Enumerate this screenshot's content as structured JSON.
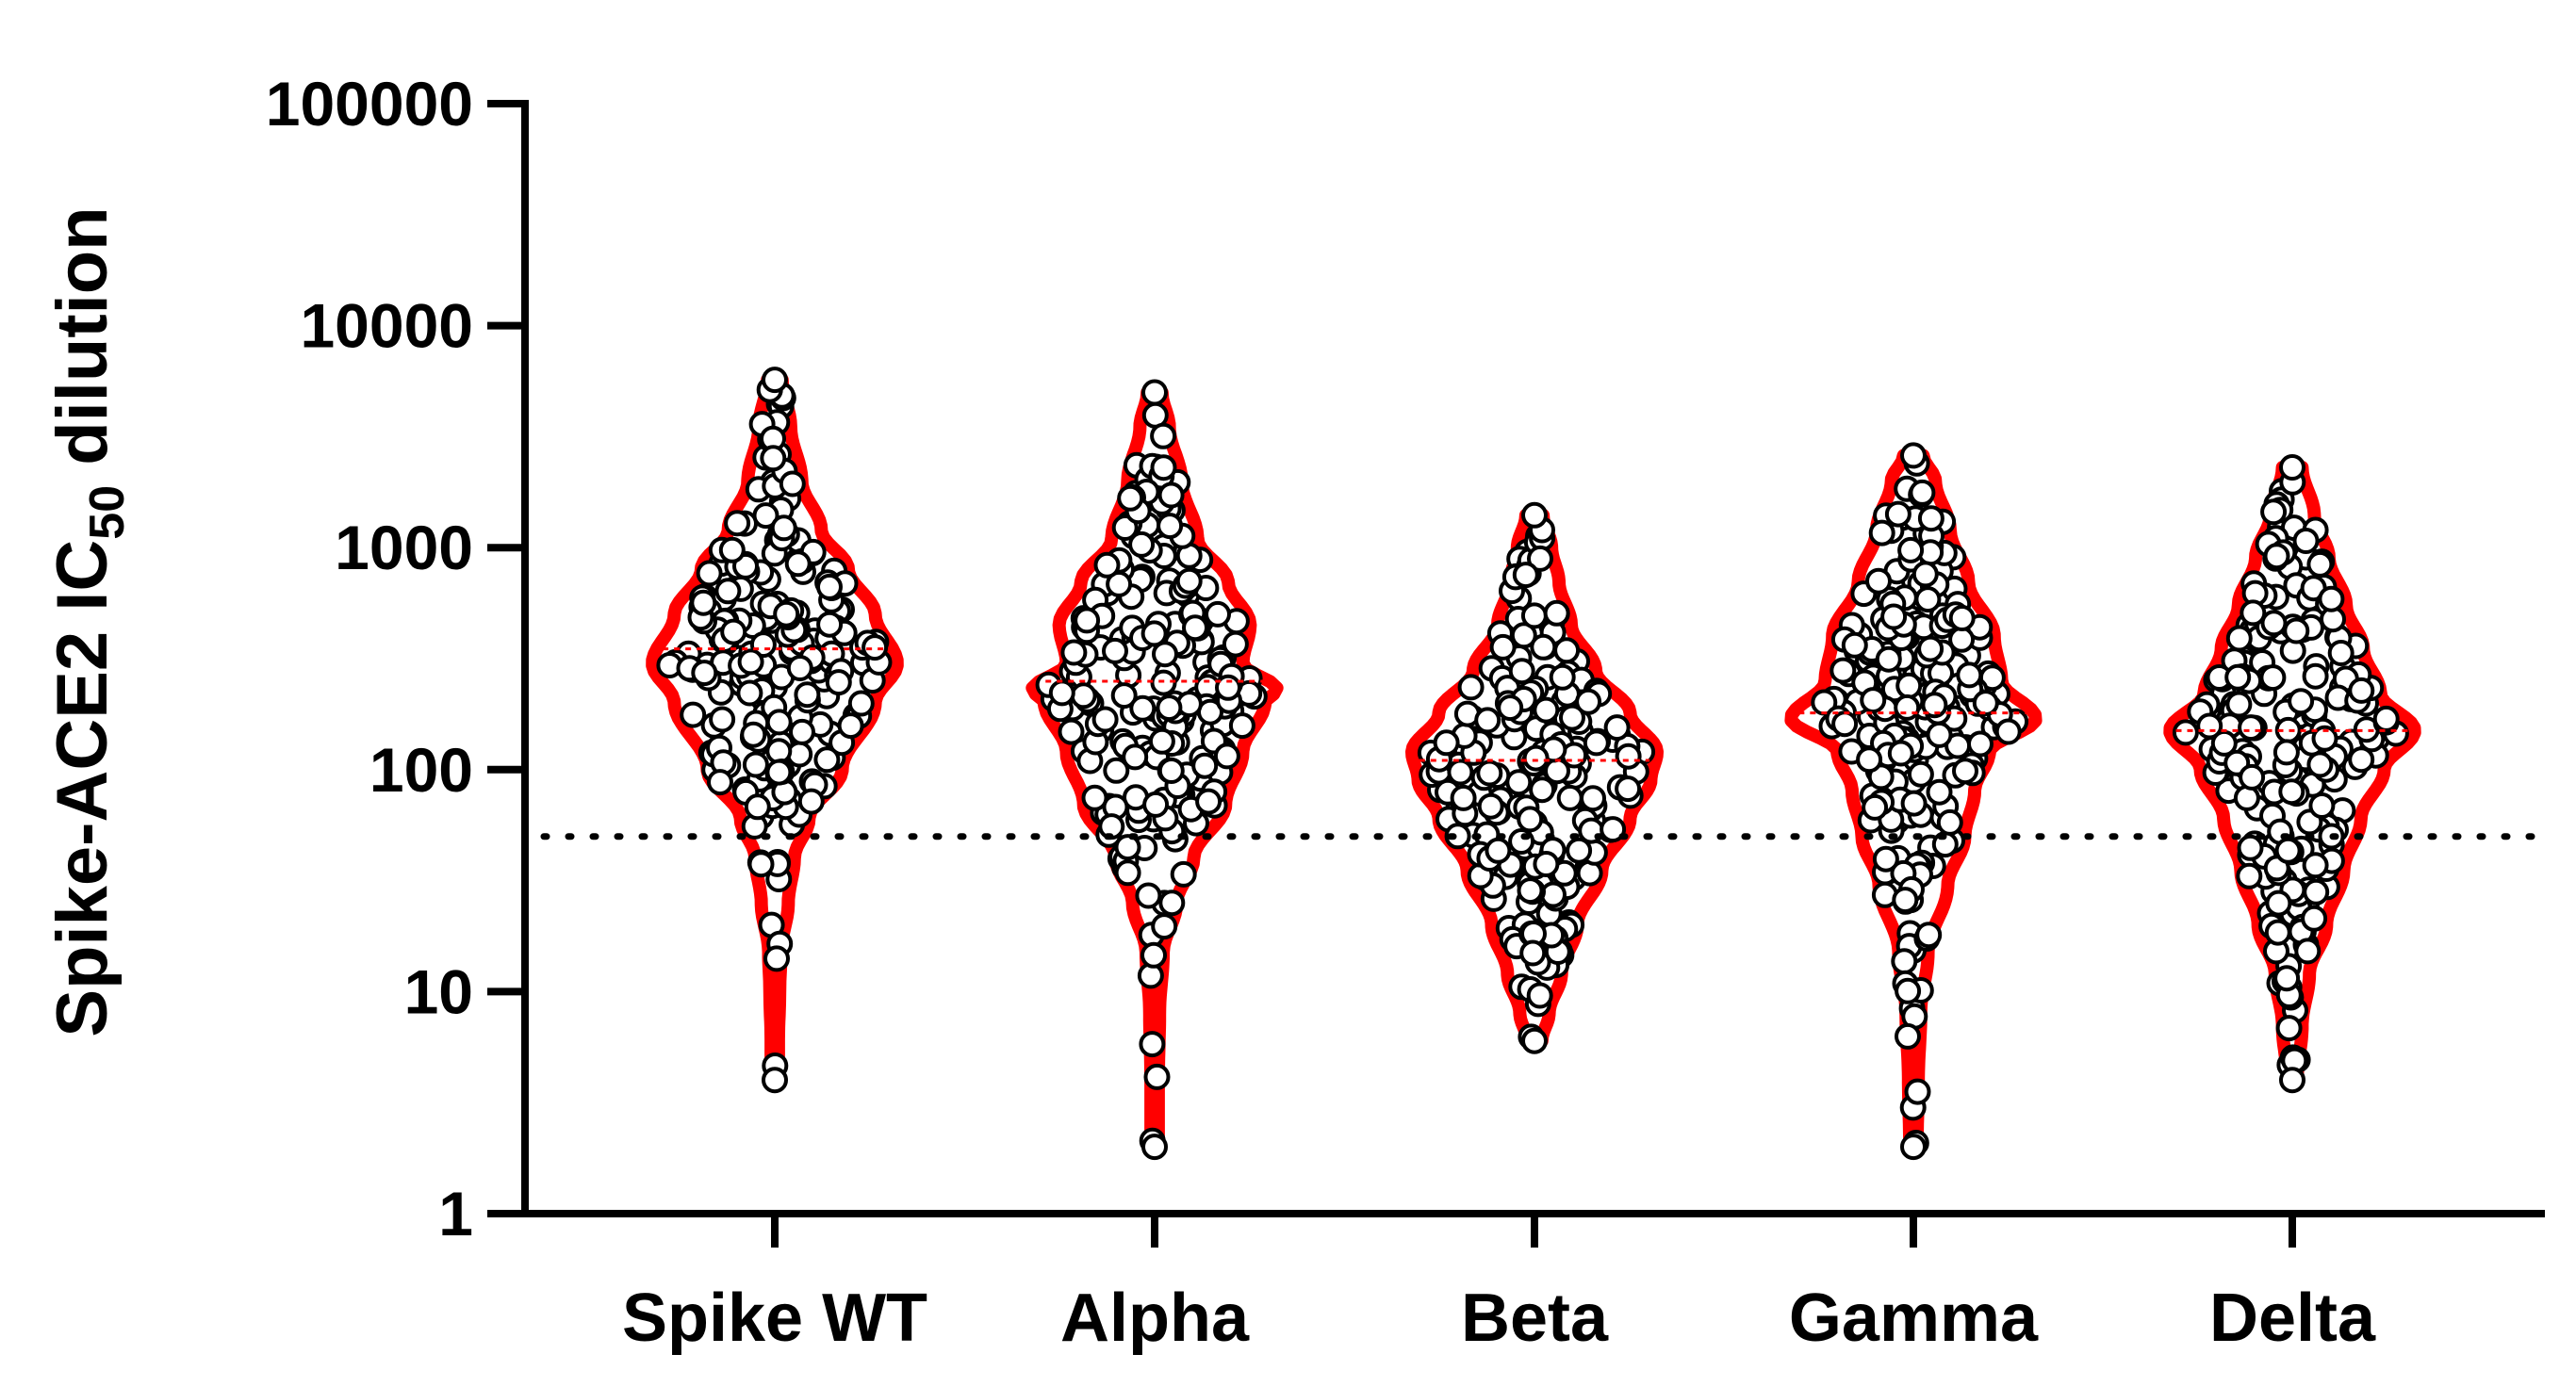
{
  "chart_data": {
    "type": "violin-scatter",
    "ylabel": {
      "prefix": "Spike-ACE2 IC",
      "subscript": "50",
      "suffix": " dilution"
    },
    "y_scale": "log",
    "ylim": [
      1,
      100000
    ],
    "y_ticks": [
      {
        "value": 1,
        "label": "1"
      },
      {
        "value": 10,
        "label": "10"
      },
      {
        "value": 100,
        "label": "100"
      },
      {
        "value": 1000,
        "label": "1000"
      },
      {
        "value": 10000,
        "label": "10000"
      },
      {
        "value": 100000,
        "label": "100000"
      }
    ],
    "categories": [
      "Spike WT",
      "Alpha",
      "Beta",
      "Gamma",
      "Delta"
    ],
    "reference_line": {
      "value": 50,
      "style": "dotted"
    },
    "colors": {
      "violin": "#ff0000",
      "point_fill": "#ffffff",
      "point_stroke": "#000000",
      "axis": "#000000"
    },
    "series": [
      {
        "category": "Spike WT",
        "median": 350,
        "max": 5700,
        "min": 4,
        "density": [
          [
            4,
            0.03
          ],
          [
            6,
            0.03
          ],
          [
            10,
            0.04
          ],
          [
            15,
            0.05
          ],
          [
            25,
            0.11
          ],
          [
            40,
            0.16
          ],
          [
            60,
            0.28
          ],
          [
            100,
            0.55
          ],
          [
            200,
            0.82
          ],
          [
            300,
            1.0
          ],
          [
            500,
            0.82
          ],
          [
            800,
            0.6
          ],
          [
            1200,
            0.38
          ],
          [
            2000,
            0.22
          ],
          [
            3500,
            0.13
          ],
          [
            5700,
            0.06
          ]
        ]
      },
      {
        "category": "Alpha",
        "median": 250,
        "max": 5000,
        "min": 2,
        "density": [
          [
            2,
            0.03
          ],
          [
            4,
            0.03
          ],
          [
            8,
            0.04
          ],
          [
            15,
            0.07
          ],
          [
            25,
            0.18
          ],
          [
            40,
            0.32
          ],
          [
            70,
            0.58
          ],
          [
            120,
            0.72
          ],
          [
            200,
            0.9
          ],
          [
            230,
            1.0
          ],
          [
            300,
            0.72
          ],
          [
            450,
            0.78
          ],
          [
            700,
            0.6
          ],
          [
            1100,
            0.35
          ],
          [
            2000,
            0.22
          ],
          [
            3500,
            0.12
          ],
          [
            5000,
            0.06
          ]
        ]
      },
      {
        "category": "Beta",
        "median": 110,
        "max": 1400,
        "min": 6,
        "density": [
          [
            6,
            0.06
          ],
          [
            8,
            0.12
          ],
          [
            12,
            0.22
          ],
          [
            20,
            0.35
          ],
          [
            35,
            0.55
          ],
          [
            60,
            0.78
          ],
          [
            90,
            0.95
          ],
          [
            120,
            1.0
          ],
          [
            180,
            0.78
          ],
          [
            280,
            0.5
          ],
          [
            450,
            0.3
          ],
          [
            700,
            0.2
          ],
          [
            1000,
            0.14
          ],
          [
            1400,
            0.07
          ]
        ]
      },
      {
        "category": "Gamma",
        "median": 180,
        "max": 2600,
        "min": 2,
        "density": [
          [
            2,
            0.03
          ],
          [
            4,
            0.04
          ],
          [
            8,
            0.06
          ],
          [
            15,
            0.12
          ],
          [
            30,
            0.28
          ],
          [
            50,
            0.42
          ],
          [
            80,
            0.5
          ],
          [
            120,
            0.62
          ],
          [
            170,
            1.0
          ],
          [
            250,
            0.72
          ],
          [
            400,
            0.66
          ],
          [
            700,
            0.45
          ],
          [
            1200,
            0.3
          ],
          [
            2000,
            0.18
          ],
          [
            2600,
            0.08
          ]
        ]
      },
      {
        "category": "Delta",
        "median": 150,
        "max": 2300,
        "min": 4,
        "density": [
          [
            4,
            0.04
          ],
          [
            7,
            0.08
          ],
          [
            12,
            0.14
          ],
          [
            20,
            0.28
          ],
          [
            35,
            0.42
          ],
          [
            60,
            0.56
          ],
          [
            100,
            0.75
          ],
          [
            150,
            1.0
          ],
          [
            220,
            0.72
          ],
          [
            350,
            0.58
          ],
          [
            550,
            0.44
          ],
          [
            900,
            0.3
          ],
          [
            1400,
            0.18
          ],
          [
            2300,
            0.08
          ]
        ]
      }
    ]
  }
}
